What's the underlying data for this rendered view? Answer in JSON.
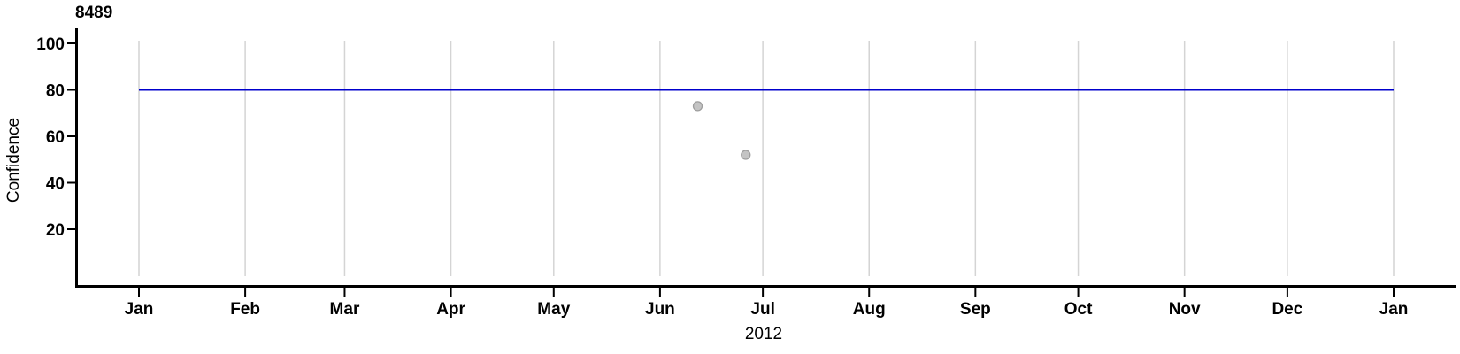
{
  "page": {
    "background": "#ffffff"
  },
  "chart_data": {
    "type": "scatter",
    "title": "8489",
    "xlabel": "2012",
    "ylabel": "Confidence",
    "x_axis": {
      "tick_labels": [
        "Jan",
        "Feb",
        "Mar",
        "Apr",
        "May",
        "Jun",
        "Jul",
        "Aug",
        "Sep",
        "Oct",
        "Nov",
        "Dec",
        "Jan"
      ],
      "year_label": "2012",
      "month_days": [
        31,
        29,
        31,
        30,
        31,
        30,
        31,
        31,
        30,
        31,
        30,
        31
      ],
      "range": [
        "2012-01-01",
        "2013-01-01"
      ]
    },
    "y_axis": {
      "label": "Confidence",
      "ticks": [
        20,
        40,
        60,
        80,
        100
      ],
      "range": [
        0,
        101
      ]
    },
    "grid": "vertical-month-gridlines",
    "legend": "none",
    "reference_line": {
      "value": 80,
      "color": "#0000cc",
      "span": [
        "2012-01-01",
        "2013-01-01"
      ]
    },
    "points": [
      {
        "date": "2012-06-12",
        "day_of_year": 164,
        "value": 73
      },
      {
        "date": "2012-06-26",
        "day_of_year": 178,
        "value": 52
      }
    ],
    "point_style": {
      "fill": "#c4c4c4",
      "stroke": "#9e9e9e",
      "radius": 5
    },
    "colors": {
      "axis": "#000000",
      "gridline": "#d4d4d4",
      "text": "#000000"
    }
  }
}
